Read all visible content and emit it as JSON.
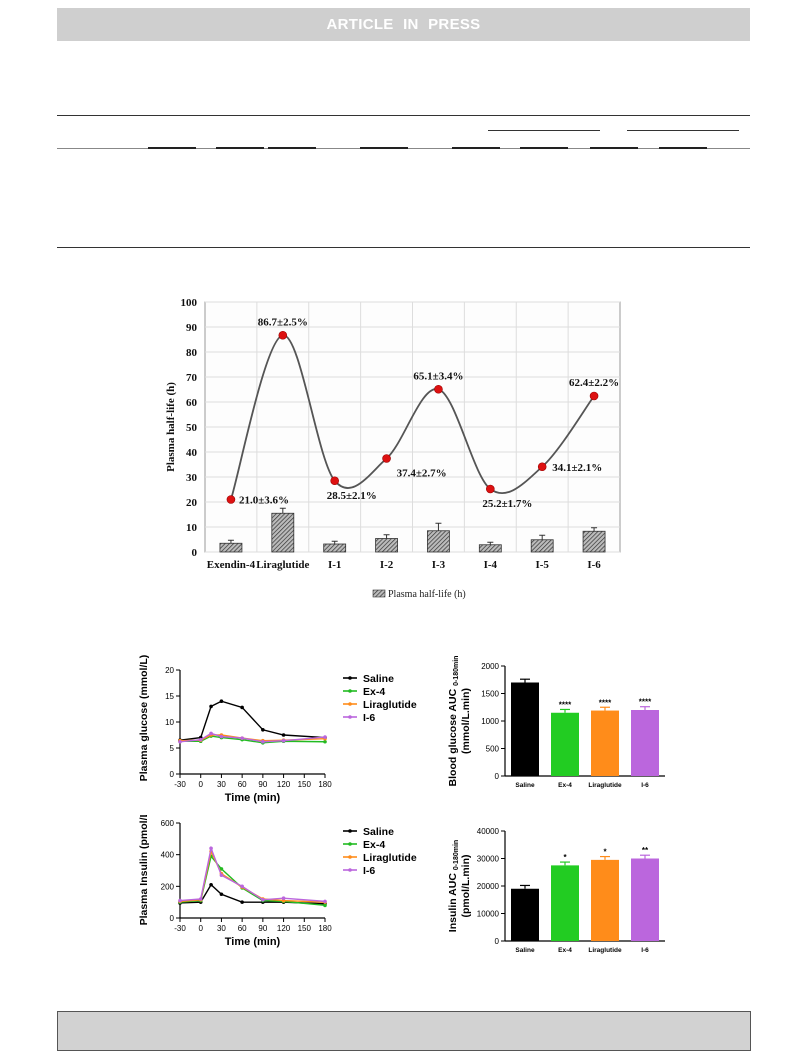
{
  "banner": {
    "text": "ARTICLE IN PRESS"
  },
  "chart_data": [
    {
      "type": "bar",
      "categories": [
        "Exendin-4",
        "Liraglutide",
        "I-1",
        "I-2",
        "I-3",
        "I-4",
        "I-5",
        "I-6"
      ],
      "ylabel": "Plasma half-life (h)",
      "ylim": [
        0,
        100
      ],
      "yticks": [
        "0",
        "10",
        "20",
        "30",
        "40",
        "50",
        "60",
        "70",
        "80",
        "90",
        "100"
      ],
      "grid": true,
      "legend": "bottom",
      "series": [
        {
          "name": "Plasma half-life (h)",
          "values": [
            3.5,
            15.5,
            3.2,
            5.4,
            8.5,
            2.9,
            4.9,
            8.3
          ],
          "errors": [
            1.2,
            2.0,
            1.1,
            1.5,
            3.0,
            1.0,
            1.8,
            1.4
          ]
        }
      ],
      "curve_points": [
        21.0,
        86.7,
        28.5,
        37.4,
        65.1,
        25.2,
        34.1,
        62.4
      ],
      "point_labels": [
        "21.0±3.6%",
        "86.7±2.5%",
        "28.5±2.1%",
        "37.4±2.7%",
        "65.1±3.4%",
        "25.2±1.7%",
        "34.1±2.1%",
        "62.4±2.2%"
      ]
    },
    {
      "type": "line",
      "ylabel": "Plasma glucose (mmol/L)",
      "xlabel": "Time (min)",
      "x": [
        -30,
        0,
        15,
        30,
        60,
        90,
        120,
        180
      ],
      "xticks": [
        "-30",
        "0",
        "30",
        "60",
        "90",
        "120",
        "150",
        "180"
      ],
      "yticks": [
        "0",
        "5",
        "10",
        "15",
        "20"
      ],
      "ylim": [
        0,
        20
      ],
      "legend": "right",
      "series": [
        {
          "name": "Saline",
          "color": "#000000",
          "values": [
            6.5,
            7.0,
            13.0,
            14.0,
            12.8,
            8.5,
            7.5,
            7.0
          ]
        },
        {
          "name": "Ex-4",
          "color": "#22bb22",
          "values": [
            6.3,
            6.3,
            7.3,
            7.0,
            6.6,
            6.0,
            6.3,
            6.2
          ]
        },
        {
          "name": "Liraglutide",
          "color": "#ff8c1a",
          "values": [
            6.4,
            6.5,
            7.5,
            7.5,
            6.9,
            6.4,
            6.5,
            6.8
          ]
        },
        {
          "name": "I-6",
          "color": "#bb66dd",
          "values": [
            6.2,
            6.6,
            7.8,
            7.2,
            6.9,
            6.2,
            6.4,
            7.1
          ]
        }
      ]
    },
    {
      "type": "bar",
      "ylabel": "Blood glucose AUC 0-180min (mmol/L.min)",
      "ylabel_main": "Blood glucose AUC",
      "ylabel_sub": "0-180min",
      "ylabel_unit": "(mmol/L.min)",
      "categories": [
        "Saline",
        "Ex-4",
        "Liraglutide",
        "I-6"
      ],
      "values": [
        1700,
        1150,
        1190,
        1200
      ],
      "colors": [
        "#000000",
        "#22cc22",
        "#ff8c1a",
        "#bb66dd"
      ],
      "annotations": [
        "",
        "****",
        "****",
        "****"
      ],
      "yticks": [
        "0",
        "500",
        "1000",
        "1500",
        "2000"
      ],
      "ylim": [
        0,
        2000
      ]
    },
    {
      "type": "line",
      "ylabel": "Plasma Insulin (pmol/L)",
      "xlabel": "Time (min)",
      "x": [
        -30,
        0,
        15,
        30,
        60,
        90,
        120,
        180
      ],
      "xticks": [
        "-30",
        "0",
        "30",
        "60",
        "90",
        "120",
        "150",
        "180"
      ],
      "yticks": [
        "0",
        "200",
        "400",
        "600"
      ],
      "ylim": [
        0,
        600
      ],
      "legend": "right",
      "series": [
        {
          "name": "Saline",
          "color": "#000000",
          "values": [
            95,
            100,
            210,
            150,
            100,
            100,
            100,
            90
          ]
        },
        {
          "name": "Ex-4",
          "color": "#22bb22",
          "values": [
            100,
            110,
            390,
            310,
            190,
            110,
            105,
            80
          ]
        },
        {
          "name": "Liraglutide",
          "color": "#ff8c1a",
          "values": [
            105,
            115,
            420,
            280,
            195,
            120,
            110,
            100
          ]
        },
        {
          "name": "I-6",
          "color": "#bb66dd",
          "values": [
            110,
            120,
            440,
            270,
            200,
            115,
            125,
            105
          ]
        }
      ]
    },
    {
      "type": "bar",
      "ylabel": "Insulin AUC 0-180min (pmol/L.min)",
      "ylabel_main": "Insulin AUC",
      "ylabel_sub": "0-180min",
      "ylabel_unit": "(pmol/L.min)",
      "categories": [
        "Saline",
        "Ex-4",
        "Liraglutide",
        "I-6"
      ],
      "values": [
        19000,
        27500,
        29500,
        30000
      ],
      "colors": [
        "#000000",
        "#22cc22",
        "#ff8c1a",
        "#bb66dd"
      ],
      "annotations": [
        "",
        "*",
        "*",
        "**"
      ],
      "yticks": [
        "0",
        "10000",
        "20000",
        "30000",
        "40000"
      ],
      "ylim": [
        0,
        40000
      ]
    }
  ]
}
